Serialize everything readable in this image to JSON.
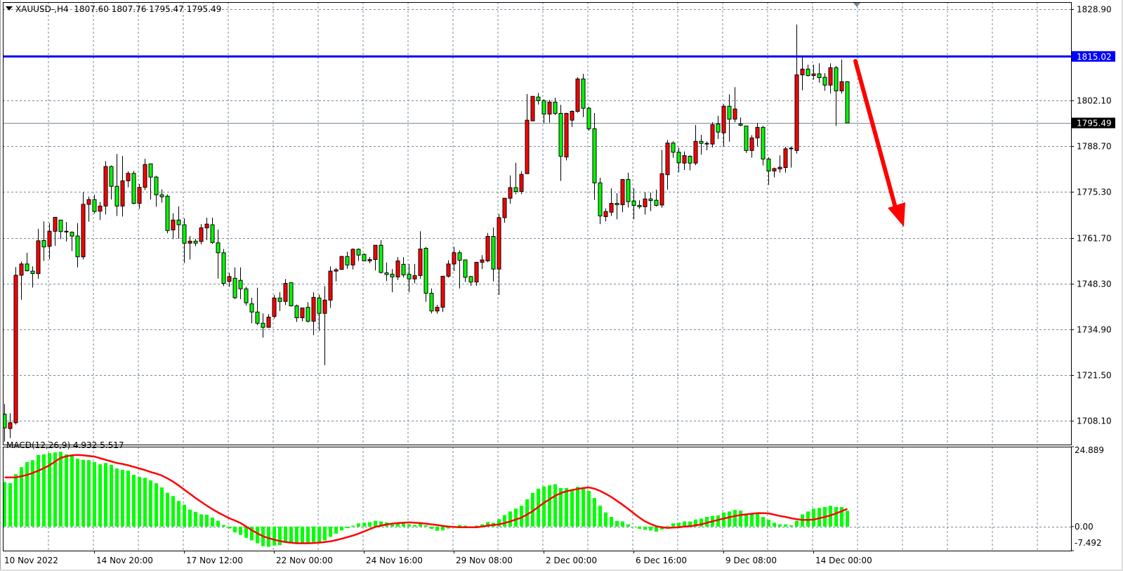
{
  "header": {
    "symbol_timeframe": "XAUUSD-,H4",
    "ohlc_readout": "1807.60 1807.76 1795.47 1795.49",
    "menu_icon": "triangle-down-icon"
  },
  "macd_label": "MACD(12,26,9) 4.932 5.517",
  "colors": {
    "bull_candle": "#ff0000",
    "bear_candle": "#00ff00",
    "grid": "#778899",
    "level_line": "#0000ff",
    "macd_histogram": "#00ff00",
    "macd_signal": "#ff0000",
    "arrow": "#ff0000",
    "bid_line": "#778899"
  },
  "chart_data": [
    {
      "type": "candlestick",
      "symbol": "XAUUSD-",
      "timeframe": "H4",
      "ylim": [
        1701.09,
        1830.96
      ],
      "grid": true,
      "y_ticks": [
        "1828.90",
        "1802.10",
        "1788.70",
        "1775.30",
        "1761.70",
        "1748.30",
        "1734.90",
        "1721.50",
        "1708.10"
      ],
      "x_tick_labels": [
        "10 Nov 2022",
        "14 Nov 20:00",
        "17 Nov 12:00",
        "22 Nov 00:00",
        "24 Nov 16:00",
        "29 Nov 08:00",
        "2 Dec 00:00",
        "6 Dec 16:00",
        "9 Dec 08:00",
        "14 Dec 00:00"
      ],
      "horizontal_level": {
        "value": 1815.02,
        "label": "1815.02"
      },
      "last_price": {
        "value": 1795.49,
        "label": "1795.49"
      },
      "annotation": "downward red arrow",
      "fields": [
        "open",
        "high",
        "low",
        "close"
      ],
      "candles": [
        [
          1710,
          1713,
          1702,
          1706
        ],
        [
          1705.8,
          1710.3,
          1703,
          1707.5
        ],
        [
          1707.5,
          1753.2,
          1707,
          1750.8
        ],
        [
          1750.8,
          1754.8,
          1743.6,
          1754.1
        ],
        [
          1754.1,
          1757.4,
          1751.9,
          1752.1
        ],
        [
          1752,
          1753.4,
          1747.2,
          1751.3
        ],
        [
          1751.3,
          1764.4,
          1749.8,
          1760.9
        ],
        [
          1761,
          1766.6,
          1755,
          1759.1
        ],
        [
          1759.3,
          1766.1,
          1755.5,
          1763.7
        ],
        [
          1763.7,
          1767.8,
          1759.4,
          1767.8
        ],
        [
          1767,
          1767,
          1761.4,
          1763.6
        ],
        [
          1763.7,
          1766.4,
          1760.7,
          1763.6
        ],
        [
          1763.4,
          1763.7,
          1757.9,
          1762.3
        ],
        [
          1762.3,
          1766.1,
          1753.1,
          1756.2
        ],
        [
          1756.2,
          1775.2,
          1755.4,
          1771.6
        ],
        [
          1771.6,
          1773.9,
          1766.5,
          1773
        ],
        [
          1773,
          1774.4,
          1768.9,
          1769.5
        ],
        [
          1769.6,
          1772.3,
          1767,
          1771.1
        ],
        [
          1771.1,
          1784.3,
          1768.6,
          1782.7
        ],
        [
          1782.7,
          1783,
          1773,
          1776.9
        ],
        [
          1776.9,
          1786.4,
          1768.2,
          1771.1
        ],
        [
          1771.1,
          1785.8,
          1768,
          1778.5
        ],
        [
          1778.5,
          1781.3,
          1776.6,
          1780.7
        ],
        [
          1780.7,
          1781.4,
          1771.6,
          1771.9
        ],
        [
          1771.9,
          1777.6,
          1770.3,
          1776.6
        ],
        [
          1776.6,
          1785,
          1775.8,
          1783.3
        ],
        [
          1783.5,
          1783.5,
          1773,
          1779.6
        ],
        [
          1779.6,
          1780,
          1770.9,
          1774.4
        ],
        [
          1774.4,
          1776,
          1772.1,
          1773.8
        ],
        [
          1774,
          1774.5,
          1763.1,
          1763.9
        ],
        [
          1764.1,
          1769,
          1761.4,
          1767
        ],
        [
          1767,
          1771,
          1761.5,
          1765.6
        ],
        [
          1765.6,
          1767.5,
          1754.4,
          1760.2
        ],
        [
          1760.2,
          1762.3,
          1755.4,
          1760.8
        ],
        [
          1760.8,
          1761.5,
          1759.3,
          1760.2
        ],
        [
          1760.7,
          1765.8,
          1759.9,
          1764.7
        ],
        [
          1764.7,
          1767.7,
          1761.1,
          1765.8
        ],
        [
          1765.6,
          1767.7,
          1760,
          1760.4
        ],
        [
          1760.3,
          1764.2,
          1749.8,
          1757.4
        ],
        [
          1757.4,
          1758.5,
          1747.6,
          1748.4
        ],
        [
          1749,
          1751.5,
          1747.4,
          1750.4
        ],
        [
          1749.9,
          1753.1,
          1743.8,
          1744.2
        ],
        [
          1749.3,
          1753.1,
          1743.8,
          1746.8
        ],
        [
          1746.8,
          1747.4,
          1741.9,
          1742.7
        ],
        [
          1742.4,
          1744.2,
          1736.7,
          1740
        ],
        [
          1740,
          1747.1,
          1736.1,
          1736.7
        ],
        [
          1736.7,
          1739.6,
          1732.5,
          1735.5
        ],
        [
          1735.5,
          1739.4,
          1735.5,
          1738.5
        ],
        [
          1738.7,
          1745,
          1738.1,
          1744.1
        ],
        [
          1744.1,
          1745.8,
          1740.3,
          1743.1
        ],
        [
          1743.1,
          1749.7,
          1742,
          1748.4
        ],
        [
          1748.6,
          1748.6,
          1741.6,
          1741.8
        ],
        [
          1741.8,
          1742.2,
          1737.1,
          1738.3
        ],
        [
          1738.3,
          1741.2,
          1737.3,
          1741.2
        ],
        [
          1741.4,
          1742.9,
          1736.9,
          1737.3
        ],
        [
          1737.3,
          1745.8,
          1733.2,
          1744.3
        ],
        [
          1744.1,
          1745.1,
          1734.5,
          1739.6
        ],
        [
          1739.6,
          1747.6,
          1724.4,
          1743.5
        ],
        [
          1743.5,
          1753.4,
          1741.2,
          1752
        ],
        [
          1752,
          1752.9,
          1749,
          1752.4
        ],
        [
          1752.5,
          1756.5,
          1752.4,
          1756.3
        ],
        [
          1756.3,
          1757.7,
          1752.7,
          1753.8
        ],
        [
          1753.8,
          1758.7,
          1752.5,
          1758.4
        ],
        [
          1758.4,
          1758.7,
          1755,
          1756.7
        ],
        [
          1756.9,
          1757.2,
          1755,
          1755
        ],
        [
          1755,
          1756.1,
          1754.3,
          1755.4
        ],
        [
          1755.4,
          1759.6,
          1752.2,
          1759.6
        ],
        [
          1759.6,
          1761.1,
          1751.3,
          1751.6
        ],
        [
          1751.5,
          1754.5,
          1749.1,
          1751
        ],
        [
          1751.1,
          1752.6,
          1745.8,
          1750.3
        ],
        [
          1750.3,
          1756.1,
          1749.4,
          1755
        ],
        [
          1754,
          1756.1,
          1750.1,
          1750.9
        ],
        [
          1751.1,
          1754.1,
          1745.8,
          1749.7
        ],
        [
          1749.7,
          1754.1,
          1748.4,
          1750.7
        ],
        [
          1750.7,
          1763.7,
          1749.8,
          1758.5
        ],
        [
          1758.7,
          1759.1,
          1743,
          1745.5
        ],
        [
          1745.5,
          1746.9,
          1739.6,
          1740.3
        ],
        [
          1740.3,
          1742.1,
          1739.5,
          1741.4
        ],
        [
          1741.4,
          1750.5,
          1740,
          1750.5
        ],
        [
          1750.5,
          1755.2,
          1750.1,
          1754.1
        ],
        [
          1754.1,
          1759.1,
          1752,
          1757.4
        ],
        [
          1757.4,
          1758.1,
          1746.9,
          1755.2
        ],
        [
          1755.3,
          1755.3,
          1748.8,
          1750.2
        ],
        [
          1750.4,
          1750.6,
          1747.7,
          1748.8
        ],
        [
          1748.8,
          1754.6,
          1747.7,
          1754.6
        ],
        [
          1754.6,
          1756.7,
          1752.6,
          1755.3
        ],
        [
          1755,
          1763.2,
          1754.6,
          1762.2
        ],
        [
          1762.2,
          1764.8,
          1749,
          1752.6
        ],
        [
          1752.6,
          1768.7,
          1745,
          1767.7
        ],
        [
          1767.7,
          1773.5,
          1766.2,
          1773.4
        ],
        [
          1773.4,
          1780.1,
          1771.8,
          1776.5
        ],
        [
          1776.5,
          1783.8,
          1774.6,
          1775.4
        ],
        [
          1775.4,
          1781.3,
          1774.6,
          1780.4
        ],
        [
          1780.6,
          1804,
          1780.6,
          1796.3
        ],
        [
          1796.1,
          1803.3,
          1796,
          1803.3
        ],
        [
          1803.1,
          1804.3,
          1800.9,
          1802
        ],
        [
          1802,
          1802.4,
          1795.4,
          1798.1
        ],
        [
          1798.1,
          1802.3,
          1795.6,
          1801.6
        ],
        [
          1801.6,
          1802.9,
          1797.8,
          1798.3
        ],
        [
          1798.3,
          1800.8,
          1778.5,
          1785.7
        ],
        [
          1785.5,
          1798.5,
          1784.5,
          1798.3
        ],
        [
          1796.3,
          1799.2,
          1794.3,
          1798.9
        ],
        [
          1798.9,
          1808.9,
          1798.5,
          1808.4
        ],
        [
          1808.4,
          1809.9,
          1797.2,
          1799.8
        ],
        [
          1799.8,
          1800.3,
          1793.2,
          1793.8
        ],
        [
          1793.8,
          1798.4,
          1772.9,
          1777.9
        ],
        [
          1777.9,
          1779.4,
          1765.8,
          1768.2
        ],
        [
          1768,
          1770.4,
          1766.6,
          1769.5
        ],
        [
          1769.3,
          1776.3,
          1768.2,
          1771.9
        ],
        [
          1771.9,
          1774.9,
          1767.2,
          1771.5
        ],
        [
          1771.5,
          1778.9,
          1769.3,
          1778.9
        ],
        [
          1778.9,
          1780.9,
          1770.7,
          1772.4
        ],
        [
          1772.6,
          1776.3,
          1767.2,
          1771.3
        ],
        [
          1771.3,
          1772.8,
          1770.3,
          1770.9
        ],
        [
          1770.9,
          1775.1,
          1768.6,
          1773.2
        ],
        [
          1773.2,
          1775.1,
          1769.6,
          1772.7
        ],
        [
          1772.8,
          1775.9,
          1771,
          1771.3
        ],
        [
          1771.4,
          1787.6,
          1770.6,
          1780.6
        ],
        [
          1780.3,
          1790.5,
          1775.9,
          1789.6
        ],
        [
          1789.6,
          1790.1,
          1785.3,
          1786.9
        ],
        [
          1786.9,
          1788.2,
          1781,
          1783.8
        ],
        [
          1783.7,
          1787.1,
          1781.7,
          1785.9
        ],
        [
          1785.7,
          1786,
          1781.6,
          1783.7
        ],
        [
          1783.7,
          1794.9,
          1783.1,
          1790.1
        ],
        [
          1790.1,
          1792,
          1786.2,
          1789.5
        ],
        [
          1789.5,
          1790.1,
          1787.5,
          1789.3
        ],
        [
          1789.3,
          1795.7,
          1788.3,
          1795
        ],
        [
          1795.2,
          1797.6,
          1790.8,
          1792.8
        ],
        [
          1792.6,
          1801,
          1788.6,
          1800.4
        ],
        [
          1800.4,
          1803.9,
          1790,
          1796.6
        ],
        [
          1796.6,
          1806,
          1795.7,
          1799.6
        ],
        [
          1795.2,
          1797.1,
          1794.5,
          1794.8
        ],
        [
          1794.6,
          1794.6,
          1786.7,
          1787.4
        ],
        [
          1787.4,
          1791.9,
          1785.3,
          1791.1
        ],
        [
          1791.1,
          1795.5,
          1788.6,
          1794.2
        ],
        [
          1794.2,
          1794.6,
          1783,
          1784.9
        ],
        [
          1784.9,
          1785.4,
          1777.3,
          1781.4
        ],
        [
          1781.4,
          1782.4,
          1779.5,
          1782.1
        ],
        [
          1782,
          1786,
          1780.9,
          1782.5
        ],
        [
          1782.4,
          1788.5,
          1780.9,
          1787.9
        ],
        [
          1787.9,
          1788.5,
          1782.4,
          1788.1
        ],
        [
          1787.4,
          1824.4,
          1786.5,
          1809.6
        ],
        [
          1809.6,
          1814.7,
          1805.1,
          1811.3
        ],
        [
          1811.3,
          1812.6,
          1809.1,
          1809.4
        ],
        [
          1809.4,
          1812.6,
          1808.2,
          1809.9
        ],
        [
          1809.9,
          1813,
          1807.3,
          1808.8
        ],
        [
          1808.9,
          1810.1,
          1804.9,
          1806.6
        ],
        [
          1806.6,
          1813,
          1804.1,
          1811.7
        ],
        [
          1811.7,
          1812.2,
          1794.6,
          1804.9
        ],
        [
          1804.9,
          1814.1,
          1804.1,
          1807.6
        ],
        [
          1807.6,
          1807.76,
          1795.47,
          1795.49
        ]
      ]
    },
    {
      "type": "bar+line",
      "title": "MACD(12,26,9) 4.932 5.517",
      "ylim": [
        -7.492,
        24.889
      ],
      "y_ticks": [
        "24.889",
        "0.00",
        "-7.492"
      ],
      "grid": true,
      "histogram": [
        13.9,
        13.5,
        16.3,
        18.5,
        20.1,
        20.7,
        22.3,
        22.5,
        22.9,
        23.1,
        23.3,
        22.5,
        22.2,
        21.1,
        20.8,
        20.7,
        20.1,
        19.4,
        19.8,
        19.2,
        18.1,
        17.7,
        17.4,
        16.1,
        15.5,
        15.2,
        14.4,
        13.5,
        12.2,
        10.5,
        9.5,
        8.0,
        6.8,
        5.3,
        4.6,
        3.8,
        3.7,
        2.8,
        1.8,
        0.5,
        -0.6,
        -1.8,
        -2.6,
        -3.5,
        -4.3,
        -5.2,
        -6.1,
        -6.3,
        -5.9,
        -5.8,
        -4.9,
        -4.8,
        -5.2,
        -5.2,
        -5.2,
        -4.8,
        -5.0,
        -4.3,
        -3.2,
        -2.2,
        -1.2,
        -0.5,
        0.3,
        1.0,
        1.2,
        1.4,
        1.8,
        1.6,
        1.3,
        0.6,
        0.9,
        1.0,
        0.7,
        0.5,
        0.9,
        0.4,
        -0.7,
        -1.3,
        -1.2,
        -0.6,
        0,
        0.5,
        0.3,
        0,
        0.3,
        0.7,
        1.4,
        1.2,
        2.3,
        3.6,
        4.7,
        5.6,
        6.5,
        8.5,
        10.5,
        11.8,
        12.5,
        12.9,
        13.2,
        12.0,
        12.0,
        11.5,
        12.4,
        12.0,
        11.1,
        8.9,
        6.5,
        4.4,
        3.0,
        1.8,
        1.6,
        0.7,
        0,
        -0.7,
        -1.0,
        -1.2,
        -1.6,
        -0.9,
        0.2,
        1.0,
        1.2,
        1.6,
        1.6,
        2.2,
        2.5,
        3.0,
        3.3,
        3.5,
        4.4,
        4.7,
        5.2,
        5.0,
        3.7,
        4.1,
        4.1,
        3.0,
        2.1,
        1.2,
        0.7,
        0.7,
        0.4,
        1.8,
        3.8,
        4.7,
        5.6,
        5.8,
        6.1,
        6.5,
        6.1,
        6.1,
        4.932
      ],
      "signal": [
        15.3,
        15.3,
        15.3,
        15.7,
        16.1,
        16.7,
        17.4,
        18.2,
        19.1,
        20.3,
        21.4,
        21.9,
        22.2,
        22.3,
        22.2,
        22.0,
        21.8,
        21.3,
        20.8,
        20.3,
        19.8,
        19.5,
        19.1,
        18.6,
        18.1,
        17.6,
        17.0,
        16.5,
        15.9,
        15.0,
        14.0,
        12.8,
        11.5,
        10.2,
        8.9,
        7.7,
        6.5,
        5.4,
        4.4,
        3.5,
        2.6,
        1.9,
        1.1,
        0.0,
        -1.1,
        -2.1,
        -3.0,
        -3.6,
        -4.1,
        -4.5,
        -4.8,
        -5.0,
        -5.2,
        -5.2,
        -5.2,
        -5.1,
        -5.0,
        -4.8,
        -4.6,
        -4.2,
        -3.8,
        -3.3,
        -2.8,
        -2.2,
        -1.5,
        -0.8,
        -0.1,
        0.3,
        0.7,
        0.9,
        1.1,
        1.2,
        1.3,
        1.2,
        1.1,
        0.9,
        0.7,
        0.5,
        0.2,
        0.0,
        -0.1,
        -0.2,
        -0.2,
        -0.2,
        -0.2,
        0.0,
        0.3,
        0.5,
        0.7,
        1.1,
        1.6,
        2.2,
        2.8,
        3.8,
        4.8,
        6.1,
        7.4,
        8.5,
        9.6,
        10.4,
        11.0,
        11.4,
        11.7,
        12.0,
        12.2,
        11.8,
        11.1,
        10.2,
        9.2,
        8.0,
        6.8,
        5.5,
        4.1,
        2.8,
        1.6,
        0.8,
        0.1,
        -0.2,
        -0.4,
        -0.3,
        -0.2,
        0.0,
        0.1,
        0.4,
        0.7,
        1.2,
        1.6,
        2.1,
        2.5,
        2.9,
        3.3,
        3.6,
        3.8,
        4.0,
        4.2,
        4.2,
        4.1,
        3.7,
        3.3,
        3.0,
        2.6,
        2.3,
        2.1,
        2.1,
        2.2,
        2.6,
        3.0,
        3.5,
        4.1,
        4.8,
        5.517
      ]
    }
  ]
}
